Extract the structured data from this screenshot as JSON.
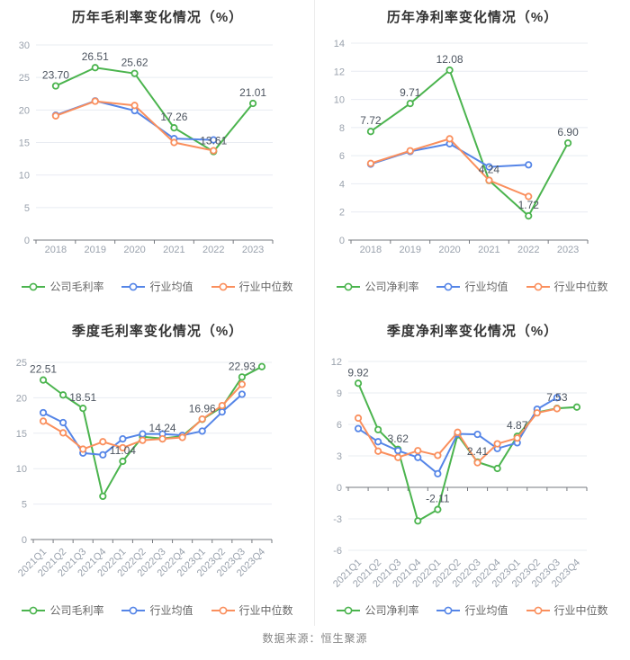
{
  "source_note": "数据来源：恒生聚源",
  "colors": {
    "company": "#4bb44e",
    "industry_mean": "#5585e7",
    "industry_median": "#fa8f5d",
    "grid": "#e8ecf2",
    "axis": "#76797f",
    "tick_label": "#9aa2ad",
    "point_label": "#4d5560",
    "title": "#333333"
  },
  "chart_data": [
    {
      "id": "annual-gross-margin",
      "type": "line",
      "title": "历年毛利率变化情况（%）",
      "categories": [
        "2018",
        "2019",
        "2020",
        "2021",
        "2022",
        "2023"
      ],
      "ylim": [
        0,
        30
      ],
      "ytick_step": 5,
      "x_label_rotate": 0,
      "legend_position": "bottom",
      "grid": true,
      "series": [
        {
          "name": "公司毛利率",
          "color": "#4bb44e",
          "values": [
            23.7,
            26.51,
            25.62,
            17.26,
            13.61,
            21.01
          ],
          "point_labels": [
            "23.70",
            "26.51",
            "25.62",
            "17.26",
            "13.61",
            "21.01"
          ]
        },
        {
          "name": "行业均值",
          "color": "#5585e7",
          "values": [
            19.2,
            21.4,
            19.9,
            15.6,
            15.4,
            null
          ],
          "point_labels": null
        },
        {
          "name": "行业中位数",
          "color": "#fa8f5d",
          "values": [
            19.1,
            21.35,
            20.7,
            15.0,
            13.75,
            null
          ],
          "point_labels": null
        }
      ]
    },
    {
      "id": "annual-net-margin",
      "type": "line",
      "title": "历年净利率变化情况（%）",
      "categories": [
        "2018",
        "2019",
        "2020",
        "2021",
        "2022",
        "2023"
      ],
      "ylim": [
        0,
        14
      ],
      "ytick_step": 2,
      "x_label_rotate": 0,
      "legend_position": "bottom",
      "grid": true,
      "series": [
        {
          "name": "公司净利率",
          "color": "#4bb44e",
          "values": [
            7.72,
            9.71,
            12.08,
            4.24,
            1.72,
            6.9
          ],
          "point_labels": [
            "7.72",
            "9.71",
            "12.08",
            "4.24",
            "1.72",
            "6.90"
          ]
        },
        {
          "name": "行业均值",
          "color": "#5585e7",
          "values": [
            5.4,
            6.3,
            6.85,
            5.2,
            5.35,
            null
          ],
          "point_labels": null
        },
        {
          "name": "行业中位数",
          "color": "#fa8f5d",
          "values": [
            5.45,
            6.35,
            7.2,
            4.25,
            3.1,
            null
          ],
          "point_labels": null
        }
      ]
    },
    {
      "id": "quarterly-gross-margin",
      "type": "line",
      "title": "季度毛利率变化情况（%）",
      "categories": [
        "2021Q1",
        "2021Q2",
        "2021Q3",
        "2021Q4",
        "2022Q1",
        "2022Q2",
        "2022Q3",
        "2022Q4",
        "2023Q1",
        "2023Q2",
        "2023Q3",
        "2023Q4"
      ],
      "ylim": [
        0,
        25
      ],
      "ytick_step": 5,
      "x_label_rotate": 45,
      "legend_position": "bottom",
      "grid": true,
      "series": [
        {
          "name": "公司毛利率",
          "color": "#4bb44e",
          "values": [
            22.51,
            20.4,
            18.51,
            6.1,
            11.04,
            14.5,
            14.24,
            14.6,
            16.96,
            18.7,
            22.93,
            24.4
          ],
          "point_labels": [
            "22.51",
            null,
            "18.51",
            null,
            "11.04",
            null,
            "14.24",
            null,
            "16.96",
            null,
            "22.93",
            null
          ]
        },
        {
          "name": "行业均值",
          "color": "#5585e7",
          "values": [
            17.9,
            16.5,
            12.2,
            11.95,
            14.2,
            14.9,
            14.9,
            14.7,
            15.3,
            18.0,
            20.5,
            null
          ],
          "point_labels": null
        },
        {
          "name": "行业中位数",
          "color": "#fa8f5d",
          "values": [
            16.7,
            15.05,
            12.75,
            13.8,
            12.95,
            14.0,
            14.2,
            14.4,
            17.0,
            18.9,
            21.9,
            null
          ],
          "point_labels": null
        }
      ]
    },
    {
      "id": "quarterly-net-margin",
      "type": "line",
      "title": "季度净利率变化情况（%）",
      "categories": [
        "2021Q1",
        "2021Q2",
        "2021Q3",
        "2021Q4",
        "2022Q1",
        "2022Q2",
        "2022Q3",
        "2022Q4",
        "2023Q1",
        "2023Q2",
        "2023Q3",
        "2023Q4"
      ],
      "ylim": [
        -6,
        12
      ],
      "ytick_step": 3,
      "x_label_rotate": 45,
      "legend_position": "bottom",
      "grid": true,
      "series": [
        {
          "name": "公司净利率",
          "color": "#4bb44e",
          "values": [
            9.92,
            5.5,
            3.62,
            -3.2,
            -2.11,
            5.0,
            2.41,
            1.8,
            4.87,
            7.15,
            7.53,
            7.65
          ],
          "point_labels": [
            "9.92",
            null,
            "3.62",
            null,
            "-2.11",
            null,
            "2.41",
            null,
            "4.87",
            null,
            "7.53",
            null
          ]
        },
        {
          "name": "行业均值",
          "color": "#5585e7",
          "values": [
            5.6,
            4.35,
            3.5,
            2.85,
            1.3,
            5.1,
            5.05,
            3.7,
            4.25,
            7.45,
            8.55,
            null
          ],
          "point_labels": null
        },
        {
          "name": "行业中位数",
          "color": "#fa8f5d",
          "values": [
            6.6,
            3.45,
            2.85,
            3.5,
            3.05,
            5.25,
            2.35,
            4.15,
            4.7,
            7.1,
            7.5,
            null
          ],
          "point_labels": null
        }
      ]
    }
  ]
}
